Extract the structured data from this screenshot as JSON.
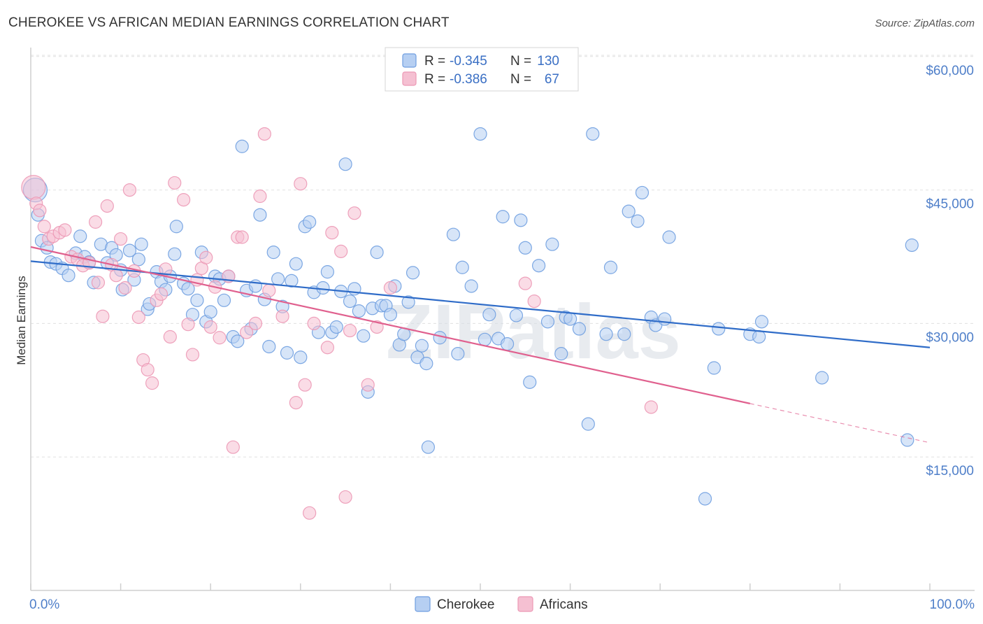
{
  "chart_data": {
    "type": "scatter",
    "title": "CHEROKEE VS AFRICAN MEDIAN EARNINGS CORRELATION CHART",
    "source": "Source: ZipAtlas.com",
    "xlabel": "",
    "ylabel": "Median Earnings",
    "xlim": [
      0,
      100
    ],
    "ylim": [
      0,
      63000
    ],
    "x_ticks": [
      {
        "value": 0,
        "label": "0.0%"
      },
      {
        "value": 100,
        "label": "100.0%"
      }
    ],
    "y_ticks": [
      {
        "value": 15000,
        "label": "$15,000"
      },
      {
        "value": 30000,
        "label": "$30,000"
      },
      {
        "value": 45000,
        "label": "$45,000"
      },
      {
        "value": 60000,
        "label": "$60,000"
      }
    ],
    "watermark": "ZIPatlas",
    "legend": {
      "r_label": "R =",
      "n_label": "N =",
      "entries": [
        {
          "r": "-0.345",
          "n": "130"
        },
        {
          "r": "-0.386",
          "n": "67"
        }
      ]
    },
    "series": [
      {
        "name": "Cherokee",
        "color": "#6f9ee0",
        "fill": "#b6cff2",
        "trend": {
          "x0": 0,
          "y0": 37000,
          "x1": 100,
          "y1": 27300,
          "solid_to": 100
        },
        "points": [
          [
            0.5,
            45000
          ],
          [
            0.8,
            42200
          ],
          [
            1.2,
            39300
          ],
          [
            1.8,
            38500
          ],
          [
            2.2,
            36900
          ],
          [
            2.8,
            36700
          ],
          [
            3.5,
            36200
          ],
          [
            4.2,
            35400
          ],
          [
            5.0,
            37900
          ],
          [
            5.5,
            39800
          ],
          [
            6.0,
            37500
          ],
          [
            6.5,
            36900
          ],
          [
            7.0,
            34600
          ],
          [
            7.8,
            38900
          ],
          [
            8.5,
            36800
          ],
          [
            9.0,
            38500
          ],
          [
            9.5,
            37700
          ],
          [
            10.0,
            36000
          ],
          [
            10.2,
            33800
          ],
          [
            11.0,
            38200
          ],
          [
            11.5,
            34900
          ],
          [
            12.0,
            37200
          ],
          [
            12.3,
            38900
          ],
          [
            13.0,
            31600
          ],
          [
            13.2,
            32200
          ],
          [
            14.0,
            35800
          ],
          [
            14.5,
            34700
          ],
          [
            15.0,
            33800
          ],
          [
            15.5,
            35300
          ],
          [
            16.0,
            37800
          ],
          [
            16.2,
            40900
          ],
          [
            17.0,
            34500
          ],
          [
            17.5,
            33900
          ],
          [
            18.0,
            31000
          ],
          [
            18.5,
            32600
          ],
          [
            19.0,
            38000
          ],
          [
            19.5,
            30200
          ],
          [
            20.0,
            31300
          ],
          [
            20.5,
            35300
          ],
          [
            21.0,
            35000
          ],
          [
            21.5,
            32600
          ],
          [
            22.0,
            35300
          ],
          [
            22.5,
            28500
          ],
          [
            23.0,
            28000
          ],
          [
            23.5,
            49900
          ],
          [
            24.0,
            33700
          ],
          [
            24.5,
            29400
          ],
          [
            25.0,
            34200
          ],
          [
            25.5,
            42200
          ],
          [
            26.0,
            32700
          ],
          [
            26.5,
            27400
          ],
          [
            27.0,
            38000
          ],
          [
            27.5,
            35000
          ],
          [
            28.0,
            31900
          ],
          [
            28.5,
            26700
          ],
          [
            29.0,
            34800
          ],
          [
            29.5,
            36700
          ],
          [
            30.0,
            26200
          ],
          [
            30.5,
            40900
          ],
          [
            31.0,
            41400
          ],
          [
            31.5,
            33500
          ],
          [
            32.0,
            29000
          ],
          [
            32.5,
            34000
          ],
          [
            33.0,
            35800
          ],
          [
            33.5,
            29000
          ],
          [
            34.0,
            29600
          ],
          [
            34.5,
            33600
          ],
          [
            35.0,
            47900
          ],
          [
            35.5,
            32500
          ],
          [
            36.0,
            33900
          ],
          [
            36.5,
            31400
          ],
          [
            37.0,
            28600
          ],
          [
            37.5,
            22300
          ],
          [
            38.0,
            31700
          ],
          [
            38.5,
            38000
          ],
          [
            39.0,
            32000
          ],
          [
            39.5,
            32000
          ],
          [
            40.0,
            31000
          ],
          [
            40.5,
            34200
          ],
          [
            41.0,
            27600
          ],
          [
            41.5,
            28800
          ],
          [
            42.0,
            32400
          ],
          [
            42.5,
            35700
          ],
          [
            43.0,
            26200
          ],
          [
            43.5,
            27500
          ],
          [
            44.0,
            25500
          ],
          [
            44.2,
            16100
          ],
          [
            45.5,
            28400
          ],
          [
            47.0,
            40000
          ],
          [
            47.5,
            26600
          ],
          [
            48.0,
            36300
          ],
          [
            49.0,
            34200
          ],
          [
            50.0,
            51300
          ],
          [
            50.5,
            28200
          ],
          [
            51.0,
            31000
          ],
          [
            52.0,
            28300
          ],
          [
            52.5,
            42000
          ],
          [
            53.0,
            27700
          ],
          [
            54.0,
            30900
          ],
          [
            54.5,
            41600
          ],
          [
            55.0,
            38500
          ],
          [
            55.5,
            23400
          ],
          [
            56.5,
            36500
          ],
          [
            57.5,
            30200
          ],
          [
            58.0,
            38900
          ],
          [
            59.0,
            26600
          ],
          [
            59.5,
            30700
          ],
          [
            60.0,
            30500
          ],
          [
            61.0,
            29400
          ],
          [
            62.0,
            18700
          ],
          [
            62.5,
            51300
          ],
          [
            64.0,
            28800
          ],
          [
            64.5,
            36300
          ],
          [
            66.0,
            28800
          ],
          [
            66.5,
            42600
          ],
          [
            67.5,
            41500
          ],
          [
            68.0,
            44700
          ],
          [
            69.0,
            30700
          ],
          [
            69.5,
            29800
          ],
          [
            70.5,
            30500
          ],
          [
            71.0,
            39700
          ],
          [
            75.0,
            10300
          ],
          [
            76.0,
            25000
          ],
          [
            76.5,
            29400
          ],
          [
            80.0,
            28800
          ],
          [
            81.0,
            28500
          ],
          [
            81.3,
            30200
          ],
          [
            88.0,
            23900
          ],
          [
            97.5,
            16900
          ],
          [
            98.0,
            38800
          ]
        ]
      },
      {
        "name": "Africans",
        "color": "#ec98b5",
        "fill": "#f5c0d2",
        "trend": {
          "x0": 0,
          "y0": 38600,
          "x1": 100,
          "y1": 16600,
          "solid_to": 80
        },
        "points": [
          [
            0.3,
            45300
          ],
          [
            0.6,
            43500
          ],
          [
            1.0,
            42700
          ],
          [
            1.5,
            40900
          ],
          [
            2.0,
            39500
          ],
          [
            2.5,
            39800
          ],
          [
            3.2,
            40200
          ],
          [
            3.8,
            40500
          ],
          [
            4.5,
            37500
          ],
          [
            5.2,
            37200
          ],
          [
            5.8,
            36500
          ],
          [
            6.5,
            36800
          ],
          [
            7.2,
            41400
          ],
          [
            7.5,
            34600
          ],
          [
            8.0,
            30800
          ],
          [
            8.5,
            43200
          ],
          [
            9.0,
            36600
          ],
          [
            9.5,
            35400
          ],
          [
            10.0,
            39500
          ],
          [
            10.5,
            34000
          ],
          [
            11.0,
            45000
          ],
          [
            11.5,
            35900
          ],
          [
            12.0,
            30700
          ],
          [
            12.5,
            25900
          ],
          [
            13.0,
            24800
          ],
          [
            13.5,
            23300
          ],
          [
            14.0,
            32600
          ],
          [
            14.5,
            33300
          ],
          [
            15.0,
            36100
          ],
          [
            15.5,
            28500
          ],
          [
            16.0,
            45800
          ],
          [
            17.0,
            43900
          ],
          [
            17.5,
            29900
          ],
          [
            18.0,
            26500
          ],
          [
            18.5,
            34900
          ],
          [
            19.0,
            36200
          ],
          [
            19.5,
            37400
          ],
          [
            20.0,
            29600
          ],
          [
            20.5,
            34100
          ],
          [
            21.0,
            28400
          ],
          [
            22.0,
            35300
          ],
          [
            22.5,
            16100
          ],
          [
            23.0,
            39700
          ],
          [
            23.5,
            39700
          ],
          [
            24.0,
            29000
          ],
          [
            25.0,
            30000
          ],
          [
            25.5,
            44300
          ],
          [
            26.0,
            51300
          ],
          [
            26.5,
            33700
          ],
          [
            28.0,
            30800
          ],
          [
            29.5,
            21100
          ],
          [
            30.0,
            45700
          ],
          [
            30.5,
            23100
          ],
          [
            31.0,
            8700
          ],
          [
            31.5,
            30000
          ],
          [
            33.0,
            27300
          ],
          [
            33.5,
            40200
          ],
          [
            34.5,
            38100
          ],
          [
            35.0,
            10500
          ],
          [
            35.5,
            29200
          ],
          [
            36.0,
            42400
          ],
          [
            37.5,
            23100
          ],
          [
            38.5,
            29600
          ],
          [
            40.0,
            34000
          ],
          [
            55.0,
            34500
          ],
          [
            56.0,
            32500
          ],
          [
            69.0,
            20600
          ]
        ]
      }
    ]
  }
}
